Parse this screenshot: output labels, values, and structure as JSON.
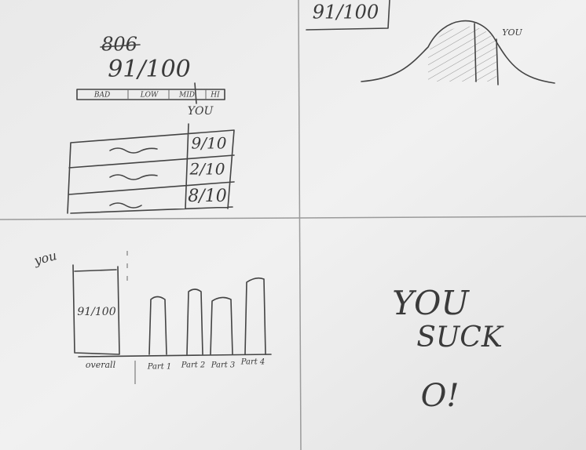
{
  "panels": {
    "top_left": {
      "crossed_out": "806",
      "score": "91/100",
      "scale": [
        "BAD",
        "LOW",
        "MID",
        "HI"
      ],
      "marker": "YOU",
      "rows": [
        "9/10",
        "2/10",
        "8/10"
      ]
    },
    "top_right": {
      "score": "91/100",
      "marker": "YOU"
    },
    "bottom_left": {
      "marker": "you",
      "score": "91/100",
      "labels": [
        "overall",
        "Part 1",
        "Part 2",
        "Part 3",
        "Part 4"
      ]
    },
    "bottom_right": {
      "lines": [
        "YOU",
        "SUCK",
        "O!"
      ]
    }
  }
}
